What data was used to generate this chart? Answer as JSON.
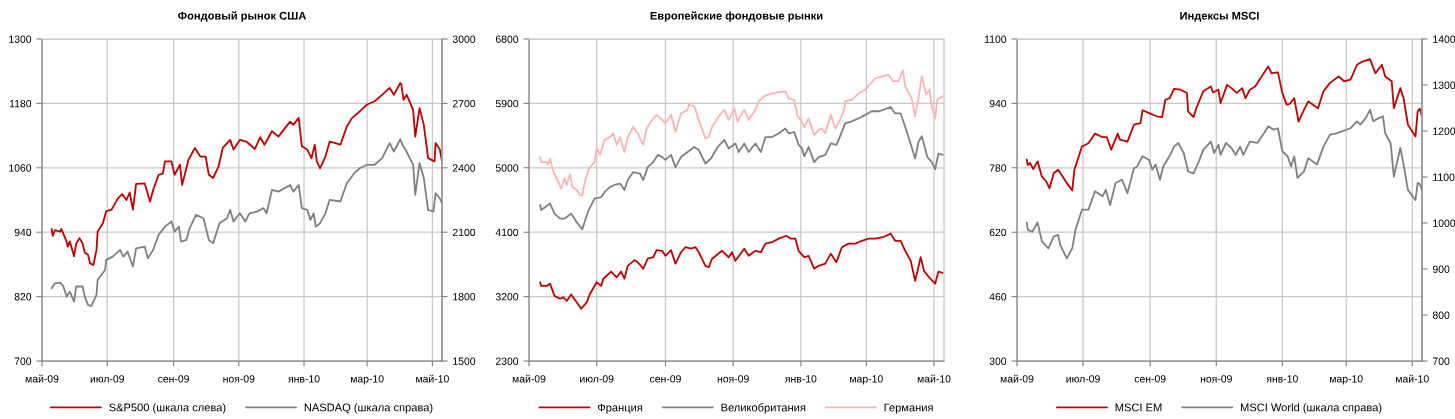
{
  "chart_data": [
    {
      "type": "line",
      "title": "Фондовый рынок США",
      "xlim": [
        "2009-05-01",
        "2010-05-10"
      ],
      "xticks": [
        {
          "value": "2009-05-01",
          "label": "май-09"
        },
        {
          "value": "2009-07-01",
          "label": "июл-09"
        },
        {
          "value": "2009-09-01",
          "label": "сен-09"
        },
        {
          "value": "2009-11-01",
          "label": "ноя-09"
        },
        {
          "value": "2010-01-01",
          "label": "янв-10"
        },
        {
          "value": "2010-03-01",
          "label": "мар-10"
        },
        {
          "value": "2010-05-01",
          "label": "май-10"
        }
      ],
      "ylim": [
        700,
        1300
      ],
      "yticks": [
        700,
        820,
        940,
        1060,
        1180,
        1300
      ],
      "y2lim": [
        1500,
        3000
      ],
      "y2ticks": [
        1500,
        1800,
        2100,
        2400,
        2700,
        3000
      ],
      "grid": true,
      "legend": "bottom",
      "series": [
        {
          "name": "S&P500 (шкала слева)",
          "color": "#c00000",
          "x": [
            "2009-05-10",
            "2009-05-11",
            "2009-05-13",
            "2009-05-18",
            "2009-05-19",
            "2009-05-24",
            "2009-05-25",
            "2009-05-27",
            "2009-05-31",
            "2009-06-02",
            "2009-06-05",
            "2009-06-08",
            "2009-06-10",
            "2009-06-13",
            "2009-06-15",
            "2009-06-18",
            "2009-06-21",
            "2009-06-22",
            "2009-06-27",
            "2009-06-30",
            "2009-07-05",
            "2009-07-11",
            "2009-07-15",
            "2009-07-19",
            "2009-07-22",
            "2009-07-25",
            "2009-07-28",
            "2009-08-05",
            "2009-08-10",
            "2009-08-13",
            "2009-08-18",
            "2009-08-22",
            "2009-08-24",
            "2009-08-30",
            "2009-09-02",
            "2009-09-07",
            "2009-09-09",
            "2009-09-15",
            "2009-09-21",
            "2009-09-26",
            "2009-10-01",
            "2009-10-04",
            "2009-10-08",
            "2009-10-13",
            "2009-10-17",
            "2009-10-24",
            "2009-10-27",
            "2009-11-02",
            "2009-11-08",
            "2009-11-16",
            "2009-11-21",
            "2009-11-25",
            "2009-12-02",
            "2009-12-08",
            "2009-12-19",
            "2009-12-22",
            "2009-12-27",
            "2009-12-30",
            "2010-01-04",
            "2010-01-08",
            "2010-01-11",
            "2010-01-13",
            "2010-01-16",
            "2010-01-21",
            "2010-01-25",
            "2010-02-04",
            "2010-02-10",
            "2010-02-15",
            "2010-02-22",
            "2010-03-01",
            "2010-03-08",
            "2010-03-15",
            "2010-03-22",
            "2010-03-26",
            "2010-04-01",
            "2010-04-02",
            "2010-04-04",
            "2010-04-07",
            "2010-04-13",
            "2010-04-15",
            "2010-04-19",
            "2010-04-23",
            "2010-04-27",
            "2010-05-03",
            "2010-05-04",
            "2010-05-08",
            "2010-05-10"
          ],
          "values": [
            946,
            933,
            944,
            941,
            946,
            923,
            913,
            923,
            895,
            919,
            929,
            919,
            902,
            898,
            882,
            879,
            907,
            941,
            957,
            979,
            982,
            1003,
            1011,
            1000,
            1014,
            982,
            1030,
            1031,
            997,
            1019,
            1047,
            1049,
            1072,
            1072,
            1047,
            1066,
            1028,
            1075,
            1097,
            1081,
            1081,
            1047,
            1041,
            1062,
            1097,
            1112,
            1094,
            1112,
            1109,
            1095,
            1117,
            1103,
            1128,
            1118,
            1146,
            1140,
            1153,
            1100,
            1094,
            1078,
            1103,
            1072,
            1059,
            1081,
            1109,
            1103,
            1137,
            1153,
            1165,
            1178,
            1184,
            1196,
            1209,
            1196,
            1218,
            1215,
            1187,
            1196,
            1168,
            1118,
            1171,
            1140,
            1078,
            1072,
            1106,
            1094,
            1072
          ]
        },
        {
          "name": "NASDAQ (шкала справа)",
          "color": "#808080",
          "axis": "y2",
          "x": [
            "2009-05-10",
            "2009-05-11",
            "2009-05-13",
            "2009-05-18",
            "2009-05-21",
            "2009-05-24",
            "2009-05-27",
            "2009-05-31",
            "2009-06-02",
            "2009-06-08",
            "2009-06-10",
            "2009-06-13",
            "2009-06-16",
            "2009-06-21",
            "2009-06-22",
            "2009-06-29",
            "2009-06-30",
            "2009-07-06",
            "2009-07-13",
            "2009-07-16",
            "2009-07-20",
            "2009-07-25",
            "2009-07-28",
            "2009-08-05",
            "2009-08-08",
            "2009-08-13",
            "2009-08-18",
            "2009-08-24",
            "2009-08-30",
            "2009-09-02",
            "2009-09-06",
            "2009-09-08",
            "2009-09-13",
            "2009-09-16",
            "2009-09-22",
            "2009-09-29",
            "2009-10-04",
            "2009-10-08",
            "2009-10-14",
            "2009-10-21",
            "2009-10-24",
            "2009-10-27",
            "2009-11-02",
            "2009-11-07",
            "2009-11-11",
            "2009-11-18",
            "2009-11-24",
            "2009-11-27",
            "2009-12-02",
            "2009-12-08",
            "2009-12-19",
            "2009-12-22",
            "2009-12-27",
            "2009-12-30",
            "2010-01-04",
            "2010-01-07",
            "2010-01-10",
            "2010-01-12",
            "2010-01-16",
            "2010-01-21",
            "2010-01-25",
            "2010-02-04",
            "2010-02-10",
            "2010-02-17",
            "2010-02-22",
            "2010-03-01",
            "2010-03-08",
            "2010-03-15",
            "2010-03-22",
            "2010-03-26",
            "2010-04-01",
            "2010-04-03",
            "2010-04-06",
            "2010-04-13",
            "2010-04-15",
            "2010-04-19",
            "2010-04-23",
            "2010-04-27",
            "2010-05-02",
            "2010-05-04",
            "2010-05-08",
            "2010-05-10"
          ],
          "values": [
            1839,
            1847,
            1862,
            1865,
            1847,
            1800,
            1823,
            1777,
            1847,
            1847,
            1800,
            1761,
            1756,
            1808,
            1878,
            1924,
            1971,
            1986,
            2018,
            1986,
            2010,
            1940,
            2025,
            2033,
            1979,
            2018,
            2087,
            2126,
            2150,
            2103,
            2126,
            2056,
            2064,
            2118,
            2181,
            2165,
            2064,
            2049,
            2142,
            2165,
            2204,
            2150,
            2188,
            2150,
            2188,
            2196,
            2212,
            2188,
            2297,
            2289,
            2320,
            2289,
            2320,
            2212,
            2204,
            2157,
            2188,
            2126,
            2142,
            2188,
            2251,
            2243,
            2328,
            2375,
            2398,
            2414,
            2414,
            2445,
            2515,
            2476,
            2533,
            2507,
            2484,
            2414,
            2274,
            2422,
            2352,
            2204,
            2196,
            2282,
            2258,
            2235
          ]
        }
      ]
    },
    {
      "type": "line",
      "title": "Европейские фондовые рынки",
      "xlim": [
        "2009-05-01",
        "2010-05-10"
      ],
      "xticks": [
        {
          "value": "2009-05-01",
          "label": "май-09"
        },
        {
          "value": "2009-07-01",
          "label": "июл-09"
        },
        {
          "value": "2009-09-01",
          "label": "сен-09"
        },
        {
          "value": "2009-11-01",
          "label": "ноя-09"
        },
        {
          "value": "2010-01-01",
          "label": "янв-10"
        },
        {
          "value": "2010-03-01",
          "label": "мар-10"
        },
        {
          "value": "2010-05-01",
          "label": "май-10"
        }
      ],
      "ylim": [
        2300,
        6800
      ],
      "yticks": [
        2300,
        3200,
        4100,
        5000,
        5900,
        6800
      ],
      "grid": true,
      "legend": "bottom",
      "series": [
        {
          "name": "Франция",
          "color": "#c00000",
          "x": [
            "2009-05-11",
            "2009-05-12",
            "2009-05-17",
            "2009-05-20",
            "2009-05-24",
            "2009-05-29",
            "2009-06-01",
            "2009-06-04",
            "2009-06-08",
            "2009-06-13",
            "2009-06-17",
            "2009-06-22",
            "2009-06-25",
            "2009-07-01",
            "2009-07-05",
            "2009-07-07",
            "2009-07-14",
            "2009-07-19",
            "2009-07-23",
            "2009-07-26",
            "2009-07-29",
            "2009-08-04",
            "2009-08-07",
            "2009-08-12",
            "2009-08-16",
            "2009-08-21",
            "2009-08-24",
            "2009-08-29",
            "2009-09-01",
            "2009-09-06",
            "2009-09-10",
            "2009-09-15",
            "2009-09-19",
            "2009-09-24",
            "2009-09-28",
            "2009-10-01",
            "2009-10-07",
            "2009-10-10",
            "2009-10-13",
            "2009-10-22",
            "2009-10-28",
            "2009-10-31",
            "2009-11-03",
            "2009-11-11",
            "2009-11-15",
            "2009-11-21",
            "2009-11-26",
            "2009-11-30",
            "2009-12-06",
            "2009-12-12",
            "2009-12-19",
            "2009-12-23",
            "2009-12-27",
            "2009-12-30",
            "2010-01-04",
            "2010-01-08",
            "2010-01-13",
            "2010-01-17",
            "2010-01-23",
            "2010-01-28",
            "2010-02-02",
            "2010-02-07",
            "2010-02-13",
            "2010-02-19",
            "2010-02-25",
            "2010-03-03",
            "2010-03-09",
            "2010-03-16",
            "2010-03-23",
            "2010-03-27",
            "2010-04-01",
            "2010-04-05",
            "2010-04-10",
            "2010-04-14",
            "2010-04-19",
            "2010-04-22",
            "2010-04-27",
            "2010-05-02",
            "2010-05-05",
            "2010-05-09"
          ],
          "values": [
            3400,
            3350,
            3350,
            3380,
            3210,
            3170,
            3190,
            3140,
            3230,
            3120,
            3030,
            3120,
            3240,
            3400,
            3350,
            3450,
            3550,
            3470,
            3550,
            3450,
            3630,
            3710,
            3680,
            3590,
            3730,
            3750,
            3850,
            3840,
            3770,
            3850,
            3660,
            3820,
            3890,
            3870,
            3890,
            3820,
            3630,
            3610,
            3730,
            3840,
            3750,
            3820,
            3700,
            3870,
            3770,
            3840,
            3820,
            3940,
            3960,
            4010,
            4050,
            4010,
            4010,
            3840,
            3750,
            3770,
            3590,
            3630,
            3660,
            3800,
            3680,
            3890,
            3940,
            3940,
            3980,
            4010,
            4010,
            4030,
            4080,
            3980,
            3980,
            3840,
            3700,
            3420,
            3750,
            3560,
            3460,
            3380,
            3550,
            3530
          ]
        },
        {
          "name": "Великобритания",
          "color": "#808080",
          "x": [
            "2009-05-11",
            "2009-05-12",
            "2009-05-20",
            "2009-05-24",
            "2009-05-29",
            "2009-06-02",
            "2009-06-08",
            "2009-06-13",
            "2009-06-18",
            "2009-06-23",
            "2009-06-29",
            "2009-07-05",
            "2009-07-08",
            "2009-07-13",
            "2009-07-17",
            "2009-07-22",
            "2009-07-26",
            "2009-07-29",
            "2009-08-03",
            "2009-08-09",
            "2009-08-12",
            "2009-08-16",
            "2009-08-21",
            "2009-08-25",
            "2009-08-29",
            "2009-09-01",
            "2009-09-06",
            "2009-09-10",
            "2009-09-15",
            "2009-09-21",
            "2009-09-27",
            "2009-10-01",
            "2009-10-07",
            "2009-10-12",
            "2009-10-18",
            "2009-10-24",
            "2009-10-28",
            "2009-11-03",
            "2009-11-06",
            "2009-11-11",
            "2009-11-15",
            "2009-11-21",
            "2009-11-26",
            "2009-11-30",
            "2009-12-06",
            "2009-12-12",
            "2009-12-18",
            "2009-12-21",
            "2009-12-26",
            "2009-12-30",
            "2010-01-02",
            "2010-01-04",
            "2010-01-08",
            "2010-01-13",
            "2010-01-17",
            "2010-01-23",
            "2010-01-28",
            "2010-02-02",
            "2010-02-04",
            "2010-02-10",
            "2010-02-16",
            "2010-02-22",
            "2010-02-28",
            "2010-03-06",
            "2010-03-12",
            "2010-03-16",
            "2010-03-23",
            "2010-03-27",
            "2010-04-01",
            "2010-04-04",
            "2010-04-08",
            "2010-04-14",
            "2010-04-17",
            "2010-04-20",
            "2010-04-25",
            "2010-04-29",
            "2010-05-02",
            "2010-05-05",
            "2010-05-09"
          ],
          "values": [
            4480,
            4410,
            4500,
            4360,
            4290,
            4290,
            4360,
            4240,
            4140,
            4380,
            4570,
            4590,
            4660,
            4730,
            4760,
            4780,
            4690,
            4830,
            4940,
            4920,
            4830,
            5010,
            5080,
            5180,
            5150,
            5110,
            5180,
            5010,
            5150,
            5220,
            5290,
            5250,
            5060,
            5130,
            5290,
            5390,
            5270,
            5340,
            5220,
            5340,
            5220,
            5340,
            5220,
            5430,
            5430,
            5480,
            5550,
            5480,
            5500,
            5320,
            5270,
            5160,
            5290,
            5080,
            5150,
            5180,
            5340,
            5320,
            5390,
            5620,
            5650,
            5690,
            5740,
            5790,
            5790,
            5810,
            5850,
            5760,
            5760,
            5620,
            5430,
            5130,
            5360,
            5440,
            5150,
            5080,
            4980,
            5200,
            5180
          ]
        },
        {
          "name": "Германия",
          "color": "#ffb3b3",
          "x": [
            "2009-05-11",
            "2009-05-12",
            "2009-05-17",
            "2009-05-18",
            "2009-05-20",
            "2009-05-23",
            "2009-05-26",
            "2009-05-30",
            "2009-06-02",
            "2009-06-04",
            "2009-06-07",
            "2009-06-09",
            "2009-06-13",
            "2009-06-16",
            "2009-06-18",
            "2009-06-20",
            "2009-06-24",
            "2009-06-29",
            "2009-07-01",
            "2009-07-04",
            "2009-07-08",
            "2009-07-13",
            "2009-07-16",
            "2009-07-19",
            "2009-07-22",
            "2009-07-26",
            "2009-07-29",
            "2009-08-03",
            "2009-08-07",
            "2009-08-12",
            "2009-08-15",
            "2009-08-19",
            "2009-08-24",
            "2009-08-28",
            "2009-09-01",
            "2009-09-06",
            "2009-09-10",
            "2009-09-15",
            "2009-09-21",
            "2009-09-22",
            "2009-09-27",
            "2009-10-01",
            "2009-10-07",
            "2009-10-10",
            "2009-10-13",
            "2009-10-19",
            "2009-10-24",
            "2009-10-28",
            "2009-11-02",
            "2009-11-05",
            "2009-11-11",
            "2009-11-15",
            "2009-11-21",
            "2009-11-24",
            "2009-11-29",
            "2009-12-06",
            "2009-12-18",
            "2009-12-21",
            "2009-12-26",
            "2009-12-29",
            "2010-01-01",
            "2010-01-04",
            "2010-01-08",
            "2010-01-13",
            "2010-01-17",
            "2010-01-20",
            "2010-01-23",
            "2010-01-28",
            "2010-02-01",
            "2010-02-06",
            "2010-02-09",
            "2010-02-10",
            "2010-02-16",
            "2010-02-22",
            "2010-02-28",
            "2010-03-05",
            "2010-03-09",
            "2010-03-16",
            "2010-03-21",
            "2010-03-25",
            "2010-03-30",
            "2010-04-03",
            "2010-04-05",
            "2010-04-11",
            "2010-04-14",
            "2010-04-17",
            "2010-04-20",
            "2010-04-24",
            "2010-04-27",
            "2010-04-29",
            "2010-05-02",
            "2010-05-04",
            "2010-05-09"
          ],
          "values": [
            5150,
            5080,
            5080,
            5040,
            5130,
            4940,
            4850,
            4710,
            4850,
            4760,
            4910,
            4730,
            4690,
            4620,
            4610,
            4780,
            4990,
            5080,
            5270,
            5180,
            5390,
            5430,
            5480,
            5320,
            5430,
            5220,
            5430,
            5570,
            5480,
            5320,
            5550,
            5650,
            5740,
            5690,
            5620,
            5740,
            5500,
            5760,
            5810,
            5880,
            5860,
            5670,
            5410,
            5430,
            5570,
            5720,
            5810,
            5670,
            5830,
            5650,
            5810,
            5670,
            5810,
            5930,
            6000,
            6040,
            6070,
            5970,
            5950,
            5720,
            5670,
            5570,
            5690,
            5460,
            5530,
            5550,
            5480,
            5740,
            5550,
            5690,
            5810,
            5930,
            5950,
            6040,
            6090,
            6180,
            6250,
            6280,
            6300,
            6210,
            6210,
            6360,
            6140,
            5970,
            5720,
            5970,
            6280,
            6020,
            6090,
            5860,
            5690,
            5950,
            6000
          ]
        }
      ]
    },
    {
      "type": "line",
      "title": "Индексы MSCI",
      "xlim": [
        "2009-05-01",
        "2010-05-10"
      ],
      "xticks": [
        {
          "value": "2009-05-01",
          "label": "май-09"
        },
        {
          "value": "2009-07-01",
          "label": "июл-09"
        },
        {
          "value": "2009-09-01",
          "label": "сен-09"
        },
        {
          "value": "2009-11-01",
          "label": "ноя-09"
        },
        {
          "value": "2010-01-01",
          "label": "янв-10"
        },
        {
          "value": "2010-03-01",
          "label": "мар-10"
        },
        {
          "value": "2010-05-01",
          "label": "май-10"
        }
      ],
      "ylim": [
        300,
        1100
      ],
      "yticks": [
        300,
        460,
        620,
        780,
        940,
        1100
      ],
      "y2lim": [
        700,
        1400
      ],
      "y2ticks": [
        700,
        800,
        900,
        1000,
        1100,
        1200,
        1300,
        1400
      ],
      "grid": true,
      "legend": "bottom",
      "series": [
        {
          "name": "MSCI EM",
          "color": "#c00000",
          "x": [
            "2009-05-10",
            "2009-05-11",
            "2009-05-13",
            "2009-05-16",
            "2009-05-20",
            "2009-05-24",
            "2009-05-28",
            "2009-05-31",
            "2009-06-04",
            "2009-06-08",
            "2009-06-10",
            "2009-06-16",
            "2009-06-21",
            "2009-06-23",
            "2009-06-30",
            "2009-07-06",
            "2009-07-12",
            "2009-07-19",
            "2009-07-23",
            "2009-07-27",
            "2009-08-02",
            "2009-08-04",
            "2009-08-11",
            "2009-08-17",
            "2009-08-23",
            "2009-08-25",
            "2009-08-31",
            "2009-09-07",
            "2009-09-12",
            "2009-09-15",
            "2009-09-19",
            "2009-09-23",
            "2009-09-29",
            "2009-10-05",
            "2009-10-06",
            "2009-10-11",
            "2009-10-14",
            "2009-10-20",
            "2009-10-27",
            "2009-10-29",
            "2009-11-03",
            "2009-11-05",
            "2009-11-11",
            "2009-11-15",
            "2009-11-20",
            "2009-11-25",
            "2009-11-28",
            "2009-12-02",
            "2009-12-07",
            "2009-12-10",
            "2009-12-19",
            "2009-12-22",
            "2009-12-28",
            "2010-01-01",
            "2010-01-05",
            "2010-01-08",
            "2010-01-12",
            "2010-01-16",
            "2010-01-21",
            "2010-01-25",
            "2010-02-03",
            "2010-02-08",
            "2010-02-14",
            "2010-02-22",
            "2010-02-27",
            "2010-03-05",
            "2010-03-11",
            "2010-03-16",
            "2010-03-23",
            "2010-03-28",
            "2010-04-03",
            "2010-04-06",
            "2010-04-12",
            "2010-04-14",
            "2010-04-20",
            "2010-04-23",
            "2010-04-27",
            "2010-05-04",
            "2010-05-06",
            "2010-05-08",
            "2010-05-10"
          ],
          "values": [
            800,
            787,
            792,
            777,
            796,
            758,
            746,
            729,
            767,
            775,
            767,
            742,
            724,
            775,
            833,
            841,
            865,
            856,
            856,
            825,
            865,
            850,
            845,
            887,
            891,
            923,
            916,
            908,
            906,
            949,
            953,
            976,
            974,
            966,
            920,
            906,
            931,
            970,
            982,
            967,
            974,
            941,
            986,
            978,
            966,
            978,
            953,
            974,
            982,
            995,
            1032,
            1015,
            1017,
            966,
            937,
            939,
            953,
            895,
            924,
            945,
            928,
            970,
            991,
            1007,
            995,
            999,
            1036,
            1044,
            1050,
            1015,
            1036,
            1007,
            995,
            928,
            978,
            953,
            887,
            858,
            920,
            927,
            908
          ]
        },
        {
          "name": "MSCI World (шкала справа)",
          "color": "#808080",
          "axis": "y2",
          "x": [
            "2009-05-10",
            "2009-05-11",
            "2009-05-15",
            "2009-05-20",
            "2009-05-24",
            "2009-05-30",
            "2009-06-04",
            "2009-06-08",
            "2009-06-10",
            "2009-06-16",
            "2009-06-21",
            "2009-06-24",
            "2009-06-30",
            "2009-07-06",
            "2009-07-12",
            "2009-07-19",
            "2009-07-22",
            "2009-07-26",
            "2009-07-31",
            "2009-08-06",
            "2009-08-11",
            "2009-08-17",
            "2009-08-20",
            "2009-08-25",
            "2009-08-31",
            "2009-09-03",
            "2009-09-06",
            "2009-09-10",
            "2009-09-13",
            "2009-09-19",
            "2009-09-23",
            "2009-09-27",
            "2009-10-02",
            "2009-10-06",
            "2009-10-11",
            "2009-10-16",
            "2009-10-20",
            "2009-10-27",
            "2009-10-30",
            "2009-11-03",
            "2009-11-05",
            "2009-11-10",
            "2009-11-15",
            "2009-11-19",
            "2009-11-23",
            "2009-11-26",
            "2009-12-02",
            "2009-12-09",
            "2009-12-15",
            "2009-12-19",
            "2009-12-24",
            "2009-12-28",
            "2010-01-01",
            "2010-01-06",
            "2010-01-09",
            "2010-01-12",
            "2010-01-15",
            "2010-01-21",
            "2010-01-25",
            "2010-02-02",
            "2010-02-08",
            "2010-02-14",
            "2010-02-20",
            "2010-02-25",
            "2010-03-05",
            "2010-03-11",
            "2010-03-14",
            "2010-03-19",
            "2010-03-23",
            "2010-03-26",
            "2010-03-31",
            "2010-04-04",
            "2010-04-06",
            "2010-04-11",
            "2010-04-14",
            "2010-04-20",
            "2010-04-23",
            "2010-04-27",
            "2010-05-04",
            "2010-05-06",
            "2010-05-08",
            "2010-05-10"
          ],
          "values": [
            1001,
            985,
            981,
            1001,
            960,
            945,
            971,
            974,
            952,
            923,
            945,
            985,
            1029,
            1029,
            1069,
            1058,
            1072,
            1039,
            1087,
            1094,
            1065,
            1119,
            1123,
            1145,
            1137,
            1116,
            1127,
            1094,
            1123,
            1146,
            1166,
            1174,
            1152,
            1112,
            1108,
            1134,
            1159,
            1177,
            1152,
            1170,
            1148,
            1174,
            1163,
            1148,
            1166,
            1148,
            1177,
            1174,
            1195,
            1210,
            1203,
            1206,
            1156,
            1145,
            1123,
            1145,
            1098,
            1112,
            1141,
            1127,
            1166,
            1192,
            1195,
            1199,
            1206,
            1221,
            1214,
            1228,
            1246,
            1221,
            1228,
            1232,
            1195,
            1174,
            1101,
            1163,
            1127,
            1072,
            1050,
            1087,
            1085,
            1072
          ]
        }
      ]
    }
  ]
}
